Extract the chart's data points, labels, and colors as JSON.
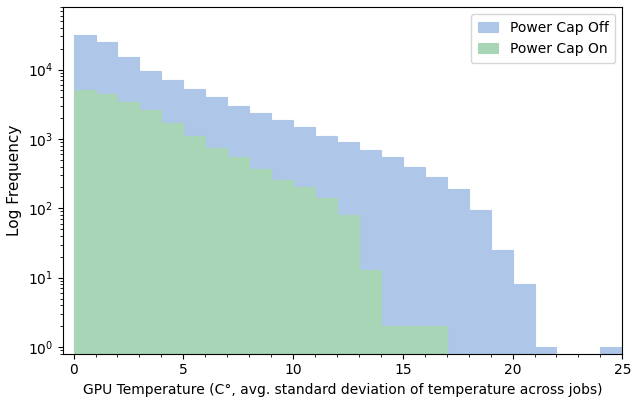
{
  "title": "",
  "xlabel": "GPU Temperature (C°, avg. standard deviation of temperature across jobs)",
  "ylabel": "Log Frequency",
  "xlim": [
    -0.5,
    25
  ],
  "ylim_log": [
    0.8,
    80000
  ],
  "bin_edges": [
    0,
    1,
    2,
    3,
    4,
    5,
    6,
    7,
    8,
    9,
    10,
    11,
    12,
    13,
    14,
    15,
    16,
    17,
    18,
    19,
    20,
    21,
    22,
    23,
    24,
    25
  ],
  "power_cap_off": [
    32000,
    25000,
    15000,
    9500,
    7000,
    5200,
    4000,
    3000,
    2400,
    1900,
    1500,
    1100,
    900,
    700,
    550,
    400,
    280,
    190,
    95,
    25,
    8,
    1,
    0,
    0,
    1
  ],
  "power_cap_on": [
    5000,
    4500,
    3400,
    2600,
    1700,
    1100,
    750,
    550,
    370,
    260,
    200,
    140,
    80,
    13,
    2,
    2,
    2,
    0,
    0,
    0,
    0,
    0,
    0,
    0,
    0
  ],
  "color_off": "#aec6e8",
  "color_on": "#a8d5b5",
  "alpha_off": 1.0,
  "alpha_on": 1.0,
  "legend_labels": [
    "Power Cap Off",
    "Power Cap On"
  ],
  "legend_loc": "upper right",
  "xlabel_fontsize": 10,
  "ylabel_fontsize": 11
}
